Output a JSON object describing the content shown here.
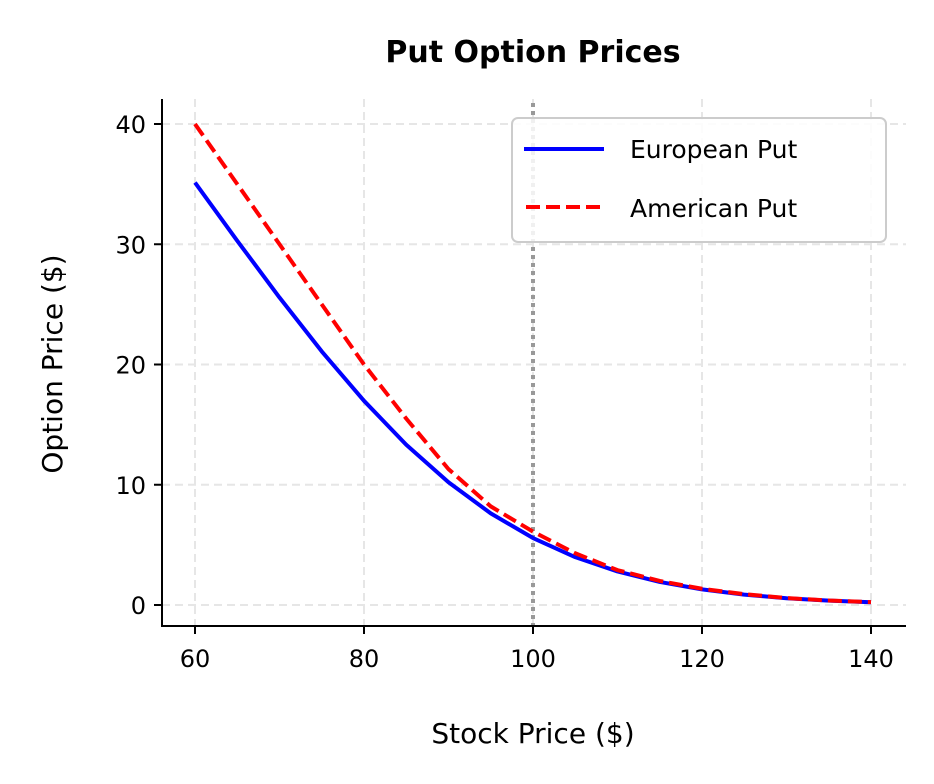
{
  "chart_data": {
    "type": "line",
    "title": "Put Option Prices",
    "xlabel": "Stock Price ($)",
    "ylabel": "Option Price ($)",
    "xlim": [
      55.9,
      144.1
    ],
    "ylim": [
      -1.7,
      42
    ],
    "xticks": [
      60,
      80,
      100,
      120,
      140
    ],
    "yticks": [
      0,
      10,
      20,
      30,
      40
    ],
    "grid": true,
    "legend_position": "top-right",
    "vline": {
      "x": 100,
      "color": "#999999",
      "style": "dotted"
    },
    "x": [
      60,
      65,
      70,
      75,
      80,
      85,
      90,
      95,
      100,
      105,
      110,
      115,
      120,
      125,
      130,
      135,
      140
    ],
    "series": [
      {
        "name": "European Put",
        "color": "#0000ff",
        "style": "solid",
        "values": [
          35.13,
          30.29,
          25.57,
          21.09,
          16.98,
          13.33,
          10.21,
          7.62,
          5.57,
          3.98,
          2.79,
          1.92,
          1.3,
          0.86,
          0.56,
          0.36,
          0.23
        ]
      },
      {
        "name": "American Put",
        "color": "#ff0000",
        "style": "dashed",
        "values": [
          40.0,
          35.0,
          30.0,
          25.0,
          20.0,
          15.5,
          11.3,
          8.2,
          6.1,
          4.3,
          2.9,
          2.0,
          1.35,
          0.9,
          0.58,
          0.37,
          0.24
        ]
      }
    ]
  }
}
